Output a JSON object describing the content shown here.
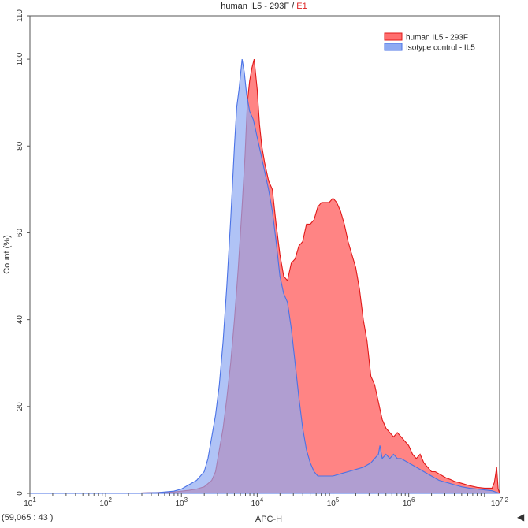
{
  "title": {
    "main": "human IL5 - 293F",
    "separator": " / ",
    "gate": "E1",
    "gate_color": "#dd2222"
  },
  "coordinate_readout": "(59,065 : 43 )",
  "scroll_arrow_icon": "left-triangle-icon",
  "chart_data": {
    "type": "area",
    "xlabel": "APC-H",
    "ylabel": "Count (%)",
    "xscale": "log10",
    "xlim": [
      1,
      7.2
    ],
    "ylim": [
      0,
      110
    ],
    "xticks": [
      {
        "pos": 1,
        "base": "10",
        "exp": "1"
      },
      {
        "pos": 2,
        "base": "10",
        "exp": "2"
      },
      {
        "pos": 3,
        "base": "10",
        "exp": "3"
      },
      {
        "pos": 4,
        "base": "10",
        "exp": "4"
      },
      {
        "pos": 5,
        "base": "10",
        "exp": "5"
      },
      {
        "pos": 6,
        "base": "10",
        "exp": "6"
      },
      {
        "pos": 7.2,
        "base": "10",
        "exp": "7.2"
      }
    ],
    "yticks": [
      0,
      20,
      40,
      60,
      80,
      100,
      110
    ],
    "grid": false,
    "legend_position": "top-right",
    "series": [
      {
        "name": "human IL5 - 293F",
        "fill": "#ff6e6e",
        "stroke": "#e01818",
        "points": [
          [
            1.0,
            0
          ],
          [
            2.3,
            0
          ],
          [
            2.5,
            0.1
          ],
          [
            2.7,
            0.2
          ],
          [
            2.9,
            0.3
          ],
          [
            3.0,
            0.5
          ],
          [
            3.1,
            0.7
          ],
          [
            3.2,
            1
          ],
          [
            3.3,
            1.5
          ],
          [
            3.4,
            3
          ],
          [
            3.45,
            5
          ],
          [
            3.5,
            10
          ],
          [
            3.55,
            15
          ],
          [
            3.6,
            22
          ],
          [
            3.65,
            30
          ],
          [
            3.7,
            40
          ],
          [
            3.75,
            52
          ],
          [
            3.8,
            66
          ],
          [
            3.84,
            78
          ],
          [
            3.87,
            90
          ],
          [
            3.9,
            95
          ],
          [
            3.93,
            98
          ],
          [
            3.96,
            100
          ],
          [
            4.0,
            93
          ],
          [
            4.03,
            85
          ],
          [
            4.06,
            80
          ],
          [
            4.1,
            76
          ],
          [
            4.15,
            72
          ],
          [
            4.2,
            70
          ],
          [
            4.25,
            62
          ],
          [
            4.3,
            55
          ],
          [
            4.35,
            50
          ],
          [
            4.4,
            49
          ],
          [
            4.45,
            53
          ],
          [
            4.5,
            54
          ],
          [
            4.55,
            57
          ],
          [
            4.6,
            58
          ],
          [
            4.65,
            62
          ],
          [
            4.7,
            62
          ],
          [
            4.75,
            63
          ],
          [
            4.8,
            66
          ],
          [
            4.85,
            67
          ],
          [
            4.9,
            67
          ],
          [
            4.95,
            67
          ],
          [
            5.0,
            68
          ],
          [
            5.05,
            67
          ],
          [
            5.1,
            65
          ],
          [
            5.15,
            62
          ],
          [
            5.2,
            58
          ],
          [
            5.25,
            55
          ],
          [
            5.3,
            52
          ],
          [
            5.35,
            47
          ],
          [
            5.4,
            40
          ],
          [
            5.45,
            35
          ],
          [
            5.5,
            27
          ],
          [
            5.55,
            25
          ],
          [
            5.6,
            21
          ],
          [
            5.65,
            17
          ],
          [
            5.7,
            15
          ],
          [
            5.75,
            14
          ],
          [
            5.8,
            13
          ],
          [
            5.85,
            14
          ],
          [
            5.9,
            13
          ],
          [
            5.95,
            12
          ],
          [
            6.0,
            11
          ],
          [
            6.05,
            9
          ],
          [
            6.1,
            8
          ],
          [
            6.15,
            9
          ],
          [
            6.2,
            7
          ],
          [
            6.25,
            6
          ],
          [
            6.3,
            5
          ],
          [
            6.35,
            5
          ],
          [
            6.4,
            4.5
          ],
          [
            6.45,
            4
          ],
          [
            6.5,
            3.5
          ],
          [
            6.55,
            3.2
          ],
          [
            6.6,
            2.8
          ],
          [
            6.7,
            2.3
          ],
          [
            6.8,
            1.8
          ],
          [
            6.9,
            1.4
          ],
          [
            7.0,
            1.2
          ],
          [
            7.1,
            1.2
          ],
          [
            7.13,
            2.5
          ],
          [
            7.16,
            6
          ],
          [
            7.18,
            1
          ],
          [
            7.2,
            0
          ]
        ]
      },
      {
        "name": "Isotype control - IL5",
        "fill": "#8eaaf2",
        "stroke": "#4a72e6",
        "points": [
          [
            1.0,
            0
          ],
          [
            2.3,
            0
          ],
          [
            2.5,
            0.1
          ],
          [
            2.7,
            0.2
          ],
          [
            2.9,
            0.5
          ],
          [
            3.0,
            1
          ],
          [
            3.1,
            2
          ],
          [
            3.2,
            3
          ],
          [
            3.3,
            5
          ],
          [
            3.35,
            8
          ],
          [
            3.4,
            13
          ],
          [
            3.45,
            18
          ],
          [
            3.5,
            25
          ],
          [
            3.55,
            35
          ],
          [
            3.6,
            48
          ],
          [
            3.65,
            63
          ],
          [
            3.7,
            80
          ],
          [
            3.73,
            89
          ],
          [
            3.76,
            93
          ],
          [
            3.8,
            100
          ],
          [
            3.83,
            97
          ],
          [
            3.86,
            92
          ],
          [
            3.9,
            88
          ],
          [
            3.95,
            86
          ],
          [
            4.0,
            82
          ],
          [
            4.05,
            78
          ],
          [
            4.1,
            74
          ],
          [
            4.15,
            70
          ],
          [
            4.2,
            65
          ],
          [
            4.25,
            58
          ],
          [
            4.3,
            50
          ],
          [
            4.35,
            46
          ],
          [
            4.4,
            44
          ],
          [
            4.45,
            38
          ],
          [
            4.5,
            30
          ],
          [
            4.55,
            22
          ],
          [
            4.6,
            15
          ],
          [
            4.65,
            10
          ],
          [
            4.7,
            7
          ],
          [
            4.75,
            5
          ],
          [
            4.8,
            4
          ],
          [
            4.85,
            4
          ],
          [
            4.9,
            4
          ],
          [
            4.95,
            4
          ],
          [
            5.0,
            4
          ],
          [
            5.1,
            4.5
          ],
          [
            5.2,
            5
          ],
          [
            5.3,
            5.5
          ],
          [
            5.4,
            6
          ],
          [
            5.5,
            7
          ],
          [
            5.6,
            9
          ],
          [
            5.62,
            11
          ],
          [
            5.65,
            8
          ],
          [
            5.7,
            9
          ],
          [
            5.75,
            8
          ],
          [
            5.8,
            9
          ],
          [
            5.85,
            8
          ],
          [
            5.9,
            8
          ],
          [
            6.0,
            7
          ],
          [
            6.1,
            6
          ],
          [
            6.2,
            5
          ],
          [
            6.3,
            4
          ],
          [
            6.4,
            3
          ],
          [
            6.5,
            2.5
          ],
          [
            6.6,
            2
          ],
          [
            6.7,
            1.5
          ],
          [
            6.8,
            1.2
          ],
          [
            6.9,
            1
          ],
          [
            7.0,
            0.8
          ],
          [
            7.1,
            0.6
          ],
          [
            7.2,
            0
          ]
        ]
      }
    ]
  }
}
